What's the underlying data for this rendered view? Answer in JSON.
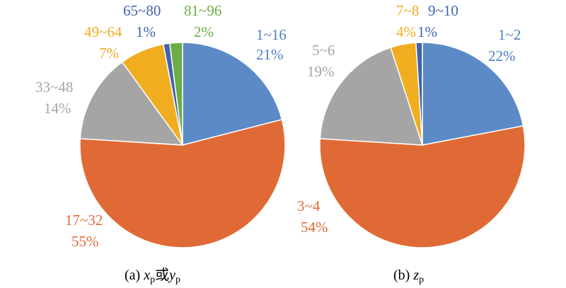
{
  "chart_data": [
    {
      "type": "pie",
      "title": "",
      "caption_prefix": "(a) ",
      "caption_var1": "x",
      "caption_sub1": "p",
      "caption_mid": "或",
      "caption_var2": "y",
      "caption_sub2": "p",
      "slices": [
        {
          "label": "1~16",
          "percent_label": "21%",
          "value": 21,
          "color": "#5b8ac6"
        },
        {
          "label": "17~32",
          "percent_label": "55%",
          "value": 55,
          "color": "#e06a35"
        },
        {
          "label": "33~48",
          "percent_label": "14%",
          "value": 14,
          "color": "#a5a5a5"
        },
        {
          "label": "49~64",
          "percent_label": "7%",
          "value": 7,
          "color": "#f0ad1f"
        },
        {
          "label": "65~80",
          "percent_label": "1%",
          "value": 1,
          "color": "#4163ae"
        },
        {
          "label": "81~96",
          "percent_label": "2%",
          "value": 2,
          "color": "#6aad45"
        }
      ]
    },
    {
      "type": "pie",
      "title": "",
      "caption_prefix": "(b) ",
      "caption_var1": "z",
      "caption_sub1": "p",
      "slices": [
        {
          "label": "1~2",
          "percent_label": "22%",
          "value": 22,
          "color": "#5b8ac6"
        },
        {
          "label": "3~4",
          "percent_label": "54%",
          "value": 54,
          "color": "#e06a35"
        },
        {
          "label": "5~6",
          "percent_label": "19%",
          "value": 19,
          "color": "#a5a5a5"
        },
        {
          "label": "7~8",
          "percent_label": "4%",
          "value": 4,
          "color": "#f0ad1f"
        },
        {
          "label": "9~10",
          "percent_label": "1%",
          "value": 1,
          "color": "#4163ae"
        }
      ]
    }
  ]
}
